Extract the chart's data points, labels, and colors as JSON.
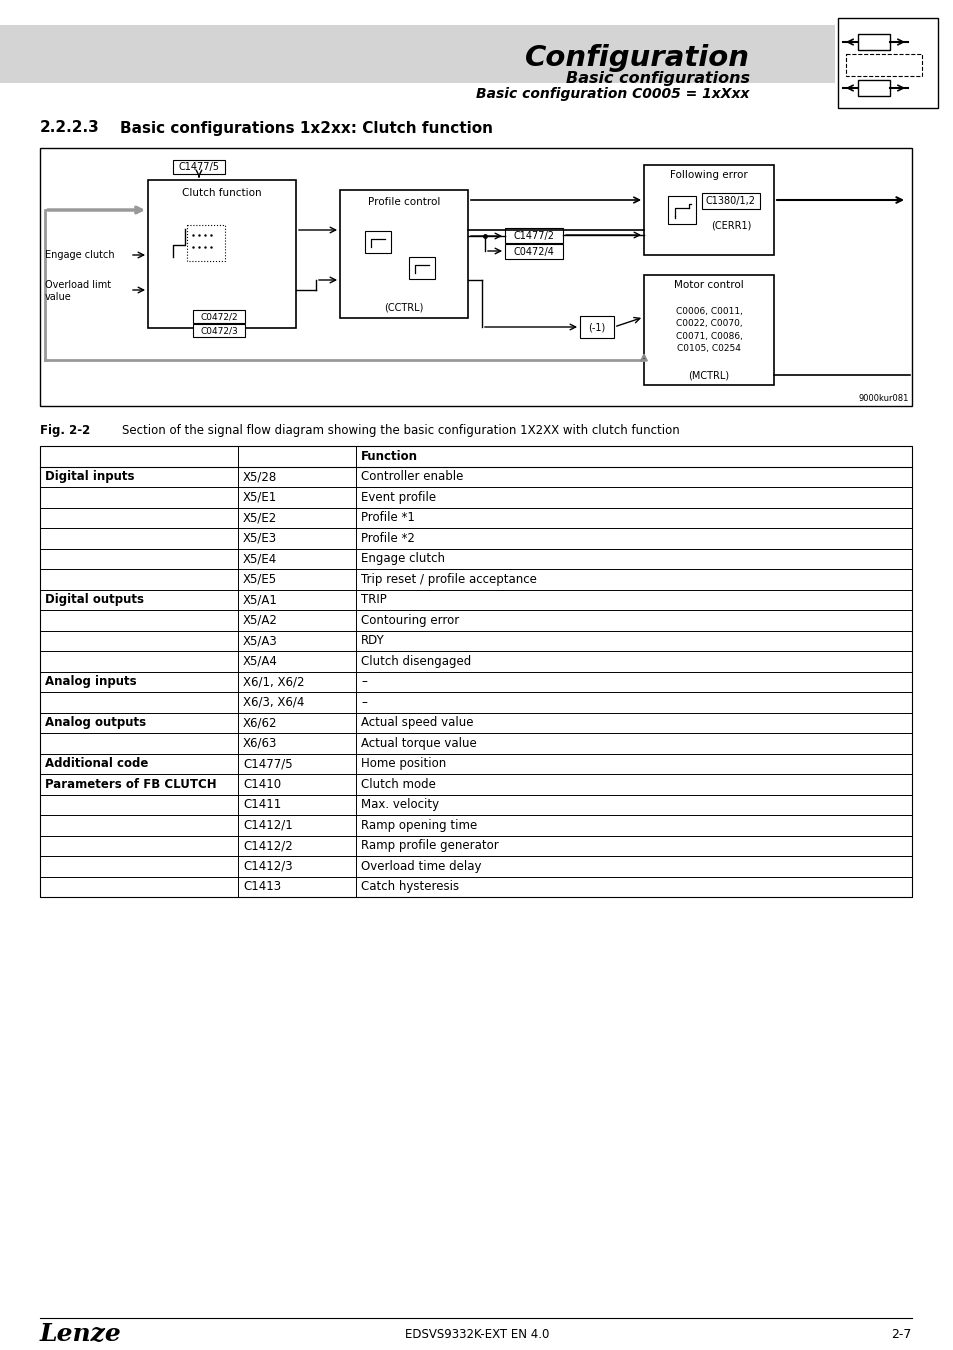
{
  "title_main": "Configuration",
  "subtitle1": "Basic configurations",
  "subtitle2": "Basic configuration C0005 = 1xXxx",
  "section_number": "2.2.2.3",
  "section_title": "Basic configurations 1x2xx: Clutch function",
  "fig_label": "Fig. 2-2",
  "fig_caption": "Section of the signal flow diagram showing the basic configuration 1X2XX with clutch function",
  "fig_note": "9000kur081",
  "footer_left": "Lenze",
  "footer_center": "EDSVS9332K-EXT EN 4.0",
  "footer_right": "2-7",
  "table_data": [
    [
      "Digital inputs",
      "X5/28",
      "Controller enable"
    ],
    [
      "",
      "X5/E1",
      "Event profile"
    ],
    [
      "",
      "X5/E2",
      "Profile *1"
    ],
    [
      "",
      "X5/E3",
      "Profile *2"
    ],
    [
      "",
      "X5/E4",
      "Engage clutch"
    ],
    [
      "",
      "X5/E5",
      "Trip reset / profile acceptance"
    ],
    [
      "Digital outputs",
      "X5/A1",
      "TRIP"
    ],
    [
      "",
      "X5/A2",
      "Contouring error"
    ],
    [
      "",
      "X5/A3",
      "RDY"
    ],
    [
      "",
      "X5/A4",
      "Clutch disengaged"
    ],
    [
      "Analog inputs",
      "X6/1, X6/2",
      "–"
    ],
    [
      "",
      "X6/3, X6/4",
      "–"
    ],
    [
      "Analog outputs",
      "X6/62",
      "Actual speed value"
    ],
    [
      "",
      "X6/63",
      "Actual torque value"
    ],
    [
      "Additional code",
      "C1477/5",
      "Home position"
    ],
    [
      "Parameters of FB CLUTCH",
      "C1410",
      "Clutch mode"
    ],
    [
      "",
      "C1411",
      "Max. velocity"
    ],
    [
      "",
      "C1412/1",
      "Ramp opening time"
    ],
    [
      "",
      "C1412/2",
      "Ramp profile generator"
    ],
    [
      "",
      "C1412/3",
      "Overload time delay"
    ],
    [
      "",
      "C1413",
      "Catch hysteresis"
    ]
  ],
  "bold_col0": [
    "Digital inputs",
    "Digital outputs",
    "Analog inputs",
    "Analog outputs",
    "Additional code",
    "Parameters of FB CLUTCH"
  ]
}
